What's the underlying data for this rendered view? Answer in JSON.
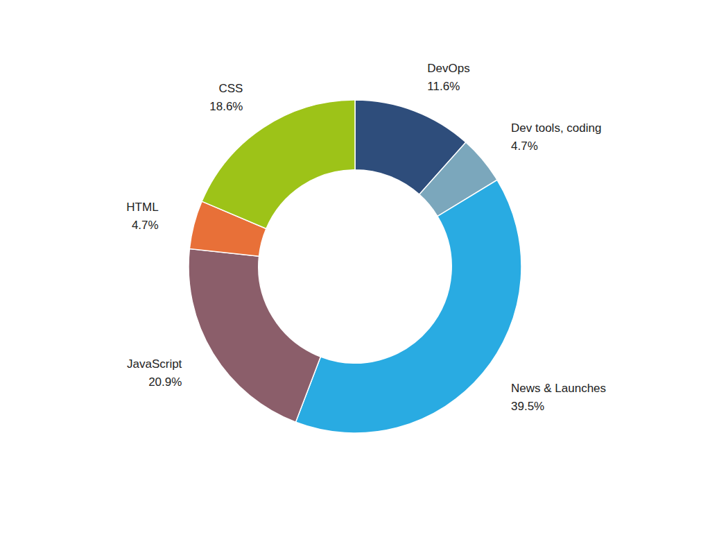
{
  "chart_data": {
    "type": "donut",
    "categories": [
      "DevOps",
      "Dev tools, coding",
      "News & Launches",
      "JavaScript",
      "HTML",
      "CSS"
    ],
    "values": [
      11.6,
      4.7,
      39.5,
      20.9,
      4.7,
      18.6
    ],
    "value_labels": [
      "11.6%",
      "4.7%",
      "39.5%",
      "20.9%",
      "4.7%",
      "18.6%"
    ],
    "colors": [
      "#2E4D7B",
      "#7BA7BC",
      "#29ABE2",
      "#8B5E6A",
      "#E87038",
      "#9DC318"
    ],
    "data_labels": true
  }
}
